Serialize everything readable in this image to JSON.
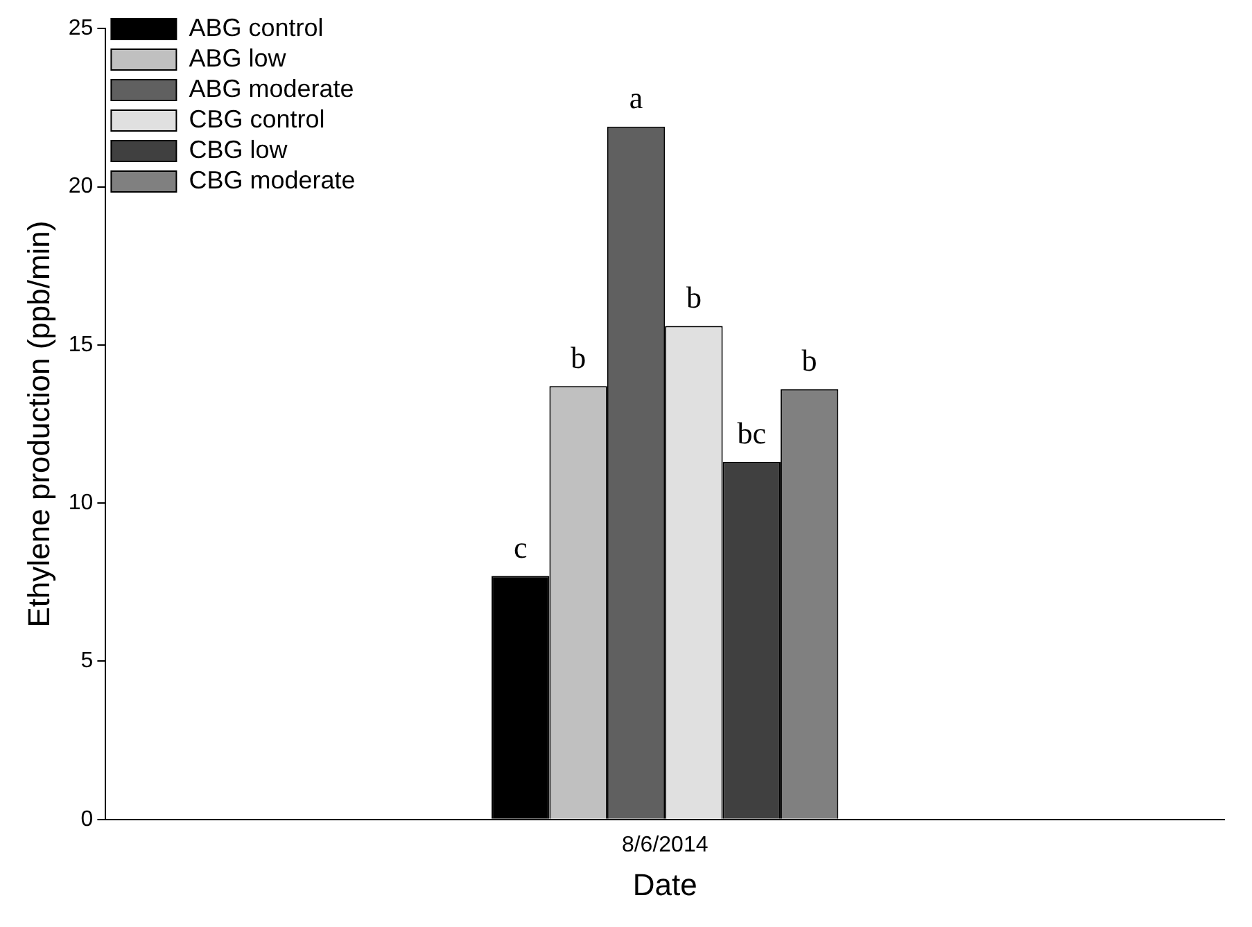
{
  "chart_data": {
    "type": "bar",
    "xlabel": "Date",
    "ylabel": "Ethylene production (ppb/min)",
    "categories": [
      "8/6/2014"
    ],
    "series": [
      {
        "name": "ABG control",
        "color": "#000000",
        "values": [
          7.7
        ],
        "value_labels": [
          "c"
        ]
      },
      {
        "name": "ABG low",
        "color": "#c0c0c0",
        "values": [
          13.7
        ],
        "value_labels": [
          "b"
        ]
      },
      {
        "name": "ABG moderate",
        "color": "#606060",
        "values": [
          21.9
        ],
        "value_labels": [
          "a"
        ]
      },
      {
        "name": "CBG control",
        "color": "#e0e0e0",
        "values": [
          15.6
        ],
        "value_labels": [
          "b"
        ]
      },
      {
        "name": "CBG low",
        "color": "#404040",
        "values": [
          11.3
        ],
        "value_labels": [
          "bc"
        ]
      },
      {
        "name": "CBG moderate",
        "color": "#808080",
        "values": [
          13.6
        ],
        "value_labels": [
          "b"
        ]
      }
    ],
    "ylim": [
      0,
      25
    ],
    "yticks": [
      0,
      5,
      10,
      15,
      20,
      25
    ],
    "grid": false,
    "legend": "top left"
  }
}
